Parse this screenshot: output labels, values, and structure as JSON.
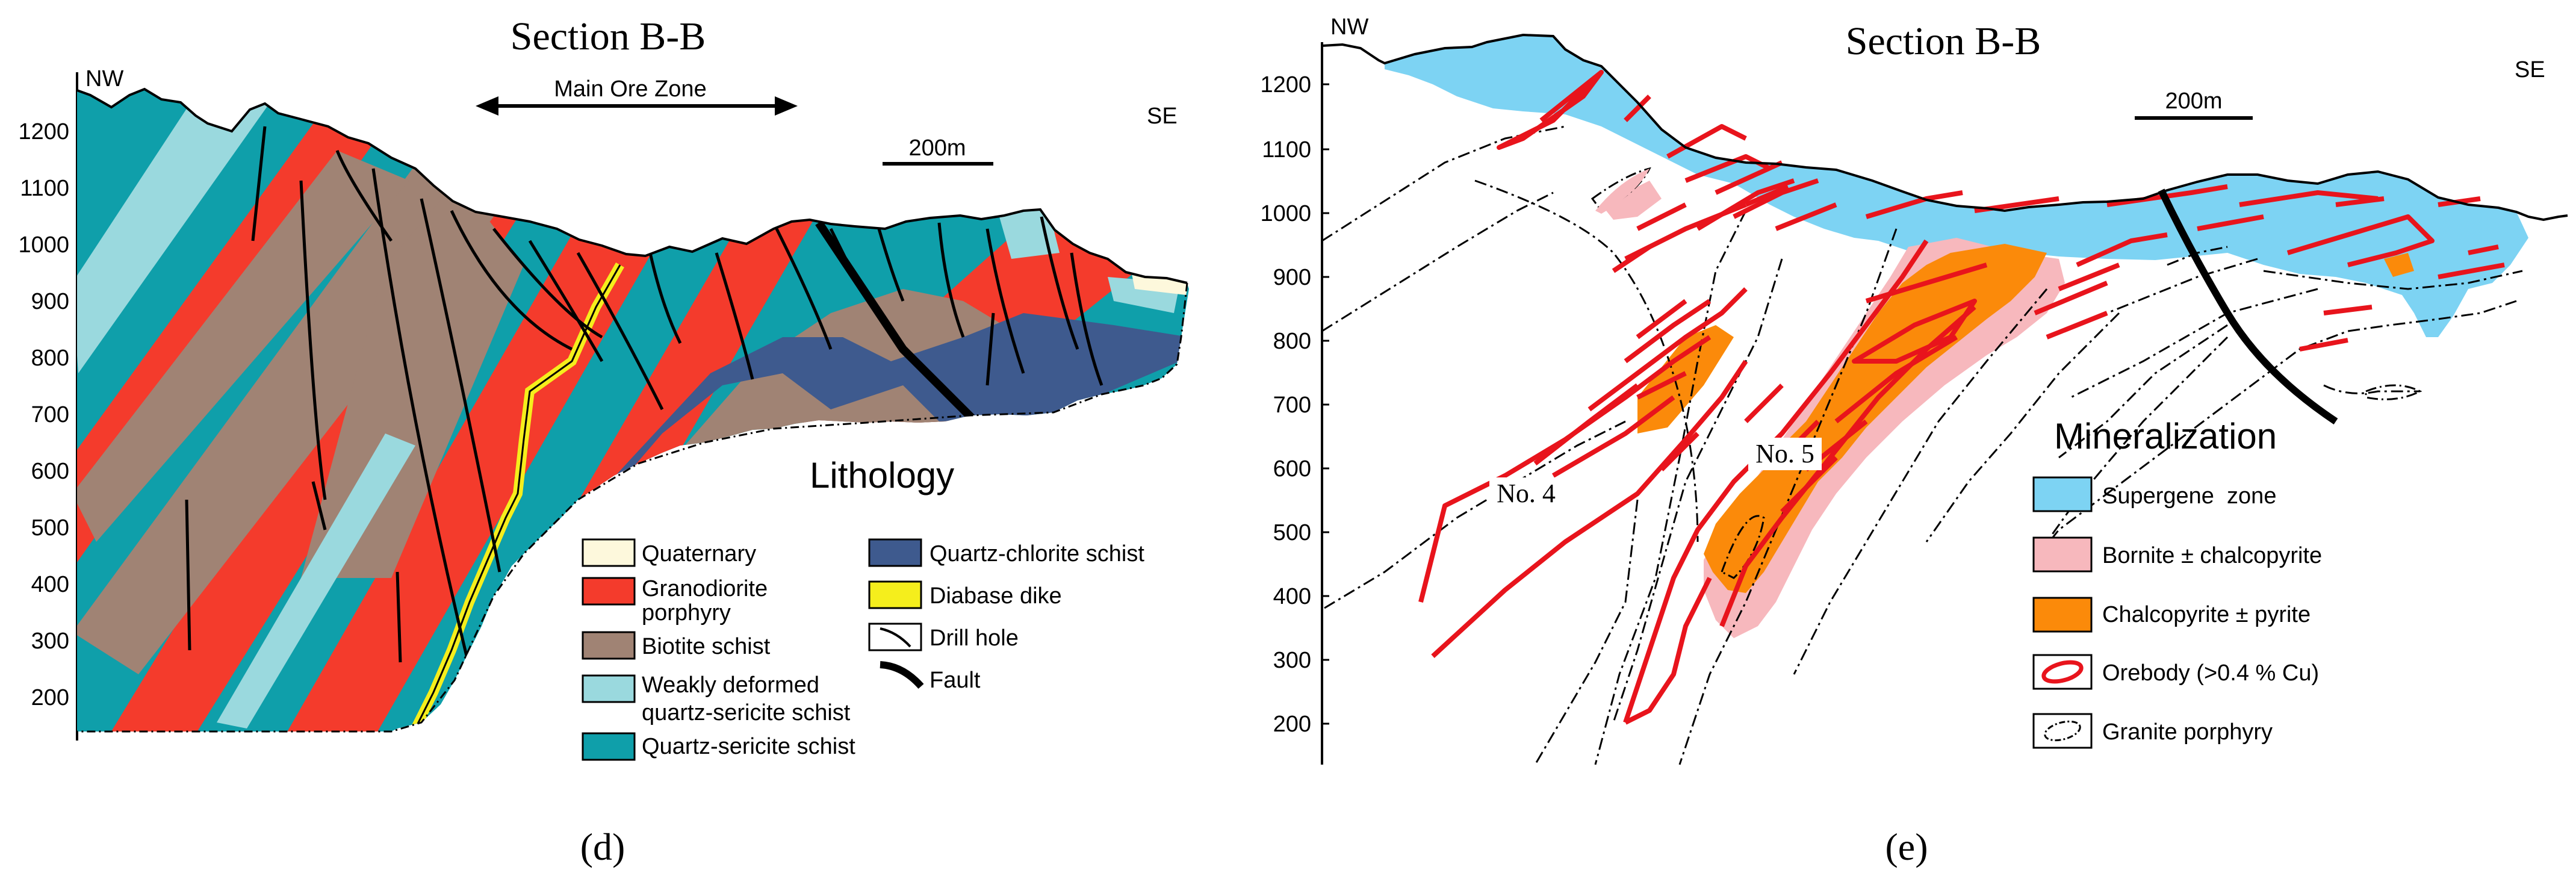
{
  "panel_d": {
    "title": "Section B-B",
    "nw": "NW",
    "se": "SE",
    "main_ore_zone": "Main Ore Zone",
    "scale_label": "200m",
    "y_ticks": [
      "1200",
      "1100",
      "1000",
      "900",
      "800",
      "700",
      "600",
      "500",
      "400",
      "300",
      "200"
    ],
    "legend_title": "Lithology",
    "legend": [
      {
        "label": "Quaternary",
        "color": "#fdf8dc"
      },
      {
        "label_line1": "Granodiorite",
        "label_line2": "porphyry",
        "color": "#f43b2c"
      },
      {
        "label": "Biotite schist",
        "color": "#a08374"
      },
      {
        "label_line1": "Weakly deformed",
        "label_line2": "quartz-sericite schist",
        "color": "#9ad9de"
      },
      {
        "label": "Quartz-sericite schist",
        "color": "#0f9faa"
      },
      {
        "label": "Quartz-chlorite schist",
        "color": "#3e5a8e"
      },
      {
        "label": "Diabase dike",
        "color": "#f5ee1c"
      },
      {
        "label": "Drill hole",
        "icon": "drill-hole-icon"
      },
      {
        "label": "Fault",
        "icon": "fault-icon"
      }
    ],
    "caption": "(d)"
  },
  "panel_e": {
    "title": "Section B-B",
    "nw": "NW",
    "se": "SE",
    "scale_label": "200m",
    "y_ticks": [
      "1200",
      "1100",
      "1000",
      "900",
      "800",
      "700",
      "600",
      "500",
      "400",
      "300",
      "200"
    ],
    "orebody_labels": [
      "No. 4",
      "No. 5"
    ],
    "legend_title": "Mineralization",
    "legend": [
      {
        "label": "Supergene  zone",
        "color": "#7dd3f3"
      },
      {
        "label": "Bornite ± chalcopyrite",
        "color": "#f7b8bd"
      },
      {
        "label": "Chalcopyrite ± pyrite",
        "color": "#fb8a0a"
      },
      {
        "label": "Orebody (>0.4 % Cu)",
        "icon": "orebody-outline-icon",
        "color": "#e8141c"
      },
      {
        "label": "Granite porphyry",
        "icon": "granite-porphyry-outline-icon"
      }
    ],
    "caption": "(e)"
  }
}
